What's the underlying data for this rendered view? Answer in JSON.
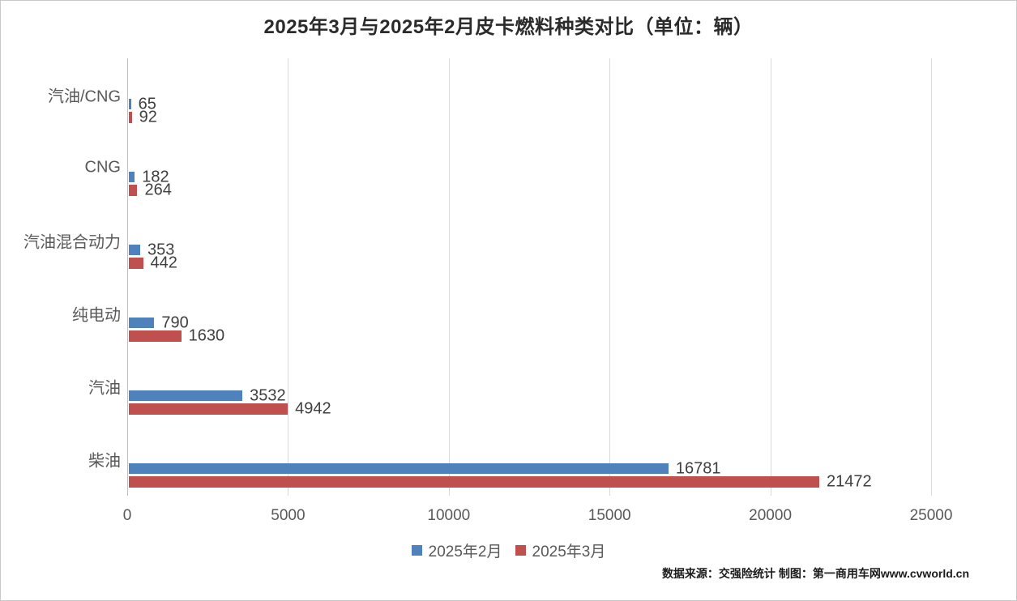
{
  "chart_data": {
    "type": "bar",
    "orientation": "horizontal",
    "title": "2025年3月与2025年2月皮卡燃料种类对比（单位：辆）",
    "unit": "辆",
    "categories": [
      "汽油/CNG",
      "CNG",
      "汽油混合动力",
      "纯电动",
      "汽油",
      "柴油"
    ],
    "series": [
      {
        "name": "2025年2月",
        "color": "#4F81BD",
        "values": [
          65,
          182,
          353,
          790,
          3532,
          16781
        ]
      },
      {
        "name": "2025年3月",
        "color": "#C0504D",
        "values": [
          92,
          264,
          442,
          1630,
          4942,
          21472
        ]
      }
    ],
    "xlim": [
      0,
      25000
    ],
    "x_ticks": [
      "0",
      "5000",
      "10000",
      "15000",
      "20000",
      "25000"
    ],
    "grid": true,
    "legend_position": "bottom",
    "data_labels": true
  },
  "footer": {
    "source": "数据来源：交强险统计 制图：第一商用车网www.cvworld.cn"
  },
  "style_colors": {
    "series_feb": "#4F81BD",
    "series_mar": "#C0504D",
    "gridline": "#d9d9d9",
    "axis_line": "#bfbfbf",
    "text_muted": "#595959",
    "text_value": "#3f3f3f"
  }
}
